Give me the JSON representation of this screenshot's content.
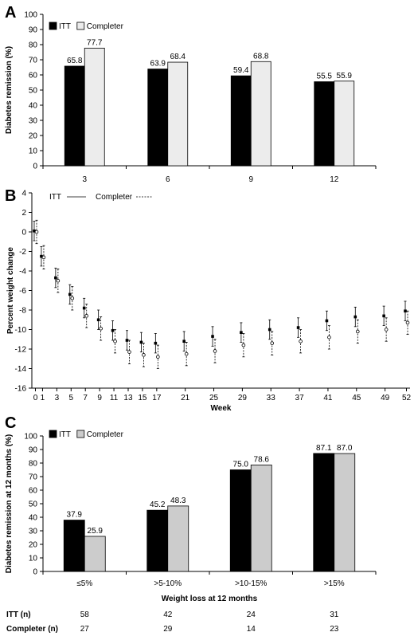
{
  "chart_data": [
    {
      "panel": "A",
      "type": "bar",
      "ylabel": "Diabetes remission (%)",
      "ylim": [
        0,
        100
      ],
      "yticks": [
        0,
        10,
        20,
        30,
        40,
        50,
        60,
        70,
        80,
        90,
        100
      ],
      "categories": [
        "3",
        "6",
        "9",
        "12"
      ],
      "series": [
        {
          "name": "ITT",
          "color": "#000000",
          "values": [
            65.8,
            63.9,
            59.4,
            55.5
          ],
          "labels": [
            "65.8",
            "63.9",
            "59.4",
            "55.5"
          ]
        },
        {
          "name": "Completer",
          "color": "#ececec",
          "values": [
            77.7,
            68.4,
            68.8,
            55.9
          ],
          "labels": [
            "77.7",
            "68.4",
            "68.8",
            "55.9"
          ]
        }
      ],
      "legend": "top-left"
    },
    {
      "panel": "B",
      "type": "scatter",
      "xlabel": "Week",
      "ylabel": "Percent weight change",
      "ylim": [
        -16,
        4
      ],
      "yticks": [
        4,
        2,
        0,
        -2,
        -4,
        -6,
        -8,
        -10,
        -12,
        -14,
        -16
      ],
      "xticks": [
        "0",
        "1",
        "3",
        "5",
        "7",
        "9",
        "11",
        "13",
        "15",
        "17",
        "21",
        "25",
        "29",
        "33",
        "37",
        "41",
        "45",
        "49",
        "52"
      ],
      "x": [
        0,
        1,
        3,
        5,
        7,
        9,
        11,
        13,
        15,
        17,
        21,
        25,
        29,
        33,
        37,
        41,
        45,
        49,
        52
      ],
      "series": [
        {
          "name": "ITT",
          "line": "solid",
          "marker": "filled",
          "values": [
            0.1,
            -2.5,
            -4.7,
            -6.4,
            -7.8,
            -9.0,
            -10.1,
            -11.1,
            -11.3,
            -11.4,
            -11.2,
            -10.7,
            -10.3,
            -10.0,
            -9.8,
            -9.1,
            -8.7,
            -8.6,
            -8.1
          ],
          "err": [
            1.0,
            1.0,
            1.0,
            1.0,
            1.0,
            1.0,
            1.0,
            1.0,
            1.0,
            1.0,
            1.0,
            1.0,
            1.0,
            1.0,
            1.0,
            1.0,
            1.0,
            1.0,
            1.0
          ]
        },
        {
          "name": "Completer",
          "line": "dashed",
          "marker": "open",
          "values": [
            0.0,
            -2.6,
            -5.0,
            -6.8,
            -8.6,
            -9.9,
            -11.2,
            -12.3,
            -12.6,
            -12.8,
            -12.5,
            -12.2,
            -11.6,
            -11.4,
            -11.2,
            -10.8,
            -10.2,
            -10.0,
            -9.3
          ],
          "err": [
            1.2,
            1.2,
            1.2,
            1.2,
            1.2,
            1.2,
            1.2,
            1.2,
            1.2,
            1.2,
            1.2,
            1.2,
            1.2,
            1.2,
            1.2,
            1.2,
            1.2,
            1.2,
            1.2
          ]
        }
      ],
      "legend": "top-left"
    },
    {
      "panel": "C",
      "type": "bar",
      "ylabel": "Diabetes remission at 12 months (%)",
      "xlabel": "Weight loss at 12 months",
      "ylim": [
        0,
        100
      ],
      "yticks": [
        0,
        10,
        20,
        30,
        40,
        50,
        60,
        70,
        80,
        90,
        100
      ],
      "categories": [
        "≤5%",
        ">5-10%",
        ">10-15%",
        ">15%"
      ],
      "series": [
        {
          "name": "ITT",
          "color": "#000000",
          "values": [
            37.9,
            45.2,
            75.0,
            87.1
          ],
          "labels": [
            "37.9",
            "45.2",
            "75.0",
            "87.1"
          ]
        },
        {
          "name": "Completer",
          "color": "#cccccc",
          "values": [
            25.9,
            48.3,
            78.6,
            87.0
          ],
          "labels": [
            "25.9",
            "48.3",
            "78.6",
            "87.0"
          ]
        }
      ],
      "legend": "top-left",
      "table": {
        "rows": [
          {
            "label": "ITT (n)",
            "values": [
              "58",
              "42",
              "24",
              "31"
            ]
          },
          {
            "label": "Completer (n)",
            "values": [
              "27",
              "29",
              "14",
              "23"
            ]
          }
        ]
      }
    }
  ]
}
